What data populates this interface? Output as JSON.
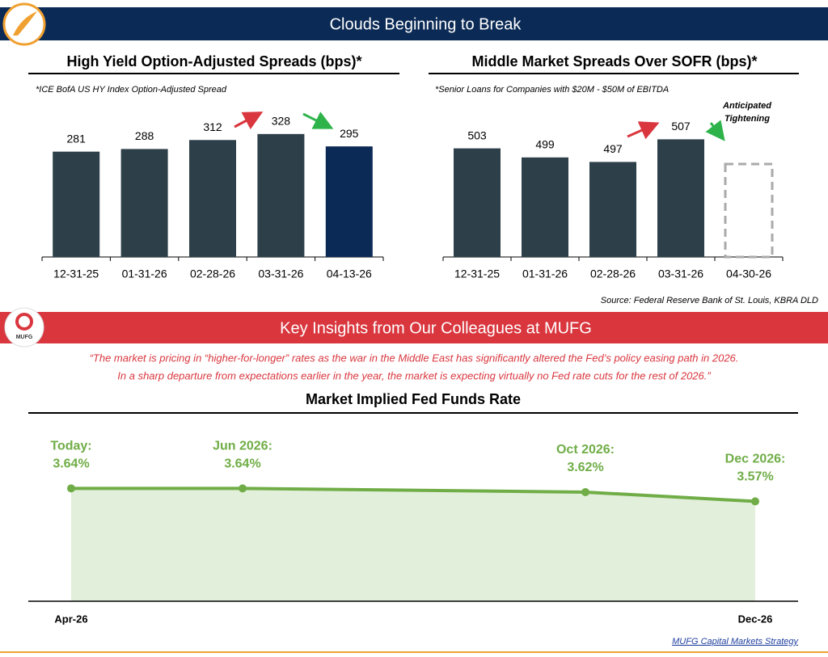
{
  "header": {
    "title": "Clouds Beginning to Break"
  },
  "source": "Source: Federal Reserve Bank of St. Louis, KBRA DLD",
  "section": {
    "title": "Key Insights from Our Colleagues at MUFG",
    "logo_text": "MUFG",
    "quote": [
      "“The market is pricing in “higher-for-longer” rates as the war in the Middle East has significantly altered the Fed’s policy easing path in 2026.",
      "In a sharp departure from expectations earlier in the year, the market is expecting virtually no Fed rate cuts for the rest of 2026.”"
    ]
  },
  "footer": "MUFG Capital Markets Strategy",
  "chart_data": [
    {
      "type": "bar",
      "title": "High Yield Option-Adjusted Spreads (bps)*",
      "subtitle": "*ICE BofA US HY Index Option-Adjusted Spread",
      "categories": [
        "12-31-25",
        "01-31-26",
        "02-28-26",
        "03-31-26",
        "04-13-26"
      ],
      "values": [
        281,
        288,
        312,
        328,
        295
      ],
      "colors": [
        "#2d4049",
        "#2d4049",
        "#2d4049",
        "#2d4049",
        "#0b2a55"
      ],
      "ylim": [
        0,
        360
      ]
    },
    {
      "type": "bar",
      "title": "Middle Market Spreads Over SOFR (bps)*",
      "subtitle": "*Senior Loans for Companies with $20M - $50M of EBITDA",
      "categories": [
        "12-31-25",
        "01-31-26",
        "02-28-26",
        "03-31-26",
        "04-30-26"
      ],
      "values": [
        503,
        499,
        497,
        507,
        null
      ],
      "colors": [
        "#2d4049",
        "#2d4049",
        "#2d4049",
        "#2d4049",
        "#2d4049"
      ],
      "annotation": "Anticipated Tightening",
      "ylim": [
        455,
        510
      ]
    },
    {
      "type": "area",
      "title": "Market Implied Fed Funds Rate",
      "categories": [
        "Today:",
        "Jun 2026:",
        "Oct 2026:",
        "Dec 2026:"
      ],
      "values": [
        3.64,
        3.64,
        3.62,
        3.57
      ],
      "value_labels": [
        "3.64%",
        "3.64%",
        "3.62%",
        "3.57%"
      ],
      "x_axis_labels": [
        "Apr-26",
        "Dec-26"
      ],
      "color": "#70ad47",
      "area_color": "#e2efda",
      "ylim": [
        3.03,
        4.0
      ]
    }
  ]
}
